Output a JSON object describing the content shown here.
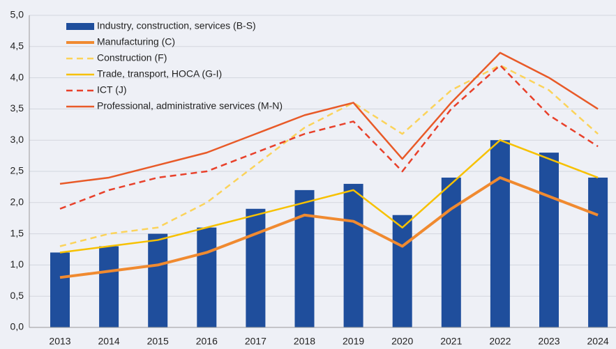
{
  "chart_data": {
    "type": "combo",
    "categories": [
      "2013",
      "2014",
      "2015",
      "2016",
      "2017",
      "2018",
      "2019",
      "2020",
      "2021",
      "2022",
      "2023",
      "2024"
    ],
    "series": [
      {
        "name": "Industry, construction, services (B-S)",
        "type": "bar",
        "color": "#1f4e9c",
        "values": [
          1.2,
          1.3,
          1.5,
          1.6,
          1.9,
          2.2,
          2.3,
          1.8,
          2.4,
          3.0,
          2.8,
          2.4
        ]
      },
      {
        "name": "Manufacturing (C)",
        "type": "line",
        "color": "#f08a30",
        "width": 4,
        "dashed": false,
        "values": [
          0.8,
          0.9,
          1.0,
          1.2,
          1.5,
          1.8,
          1.7,
          1.3,
          1.9,
          2.4,
          2.1,
          1.8
        ]
      },
      {
        "name": "Construction (F)",
        "type": "line",
        "color": "#fbd35a",
        "width": 2.5,
        "dashed": true,
        "values": [
          1.3,
          1.5,
          1.6,
          2.0,
          2.6,
          3.2,
          3.6,
          3.1,
          3.8,
          4.2,
          3.8,
          3.1
        ]
      },
      {
        "name": "Trade, transport, HOCA (G-I)",
        "type": "line",
        "color": "#f7c100",
        "width": 2.5,
        "dashed": false,
        "values": [
          1.2,
          1.3,
          1.4,
          1.6,
          1.8,
          2.0,
          2.2,
          1.6,
          2.3,
          3.0,
          2.7,
          2.4
        ]
      },
      {
        "name": "ICT (J)",
        "type": "line",
        "color": "#e8402a",
        "width": 2.5,
        "dashed": true,
        "values": [
          1.9,
          2.2,
          2.4,
          2.5,
          2.8,
          3.1,
          3.3,
          2.5,
          3.5,
          4.2,
          3.4,
          2.9
        ]
      },
      {
        "name": "Professional, administrative services (M-N)",
        "type": "line",
        "color": "#e85a28",
        "width": 2.5,
        "dashed": false,
        "values": [
          2.3,
          2.4,
          2.6,
          2.8,
          3.1,
          3.4,
          3.6,
          2.7,
          3.6,
          4.4,
          4.0,
          3.5
        ]
      }
    ],
    "ylim": [
      0,
      5
    ],
    "yticks": [
      {
        "value": 0,
        "label": "0,0"
      },
      {
        "value": 0.5,
        "label": "0,5"
      },
      {
        "value": 1,
        "label": "1,0"
      },
      {
        "value": 1.5,
        "label": "1,5"
      },
      {
        "value": 2,
        "label": "2,0"
      },
      {
        "value": 2.5,
        "label": "2,5"
      },
      {
        "value": 3,
        "label": "3,0"
      },
      {
        "value": 3.5,
        "label": "3,5"
      },
      {
        "value": 4,
        "label": "4,0"
      },
      {
        "value": 4.5,
        "label": "4,5"
      },
      {
        "value": 5,
        "label": "5,0"
      }
    ],
    "grid": true,
    "legend": "top-left"
  }
}
